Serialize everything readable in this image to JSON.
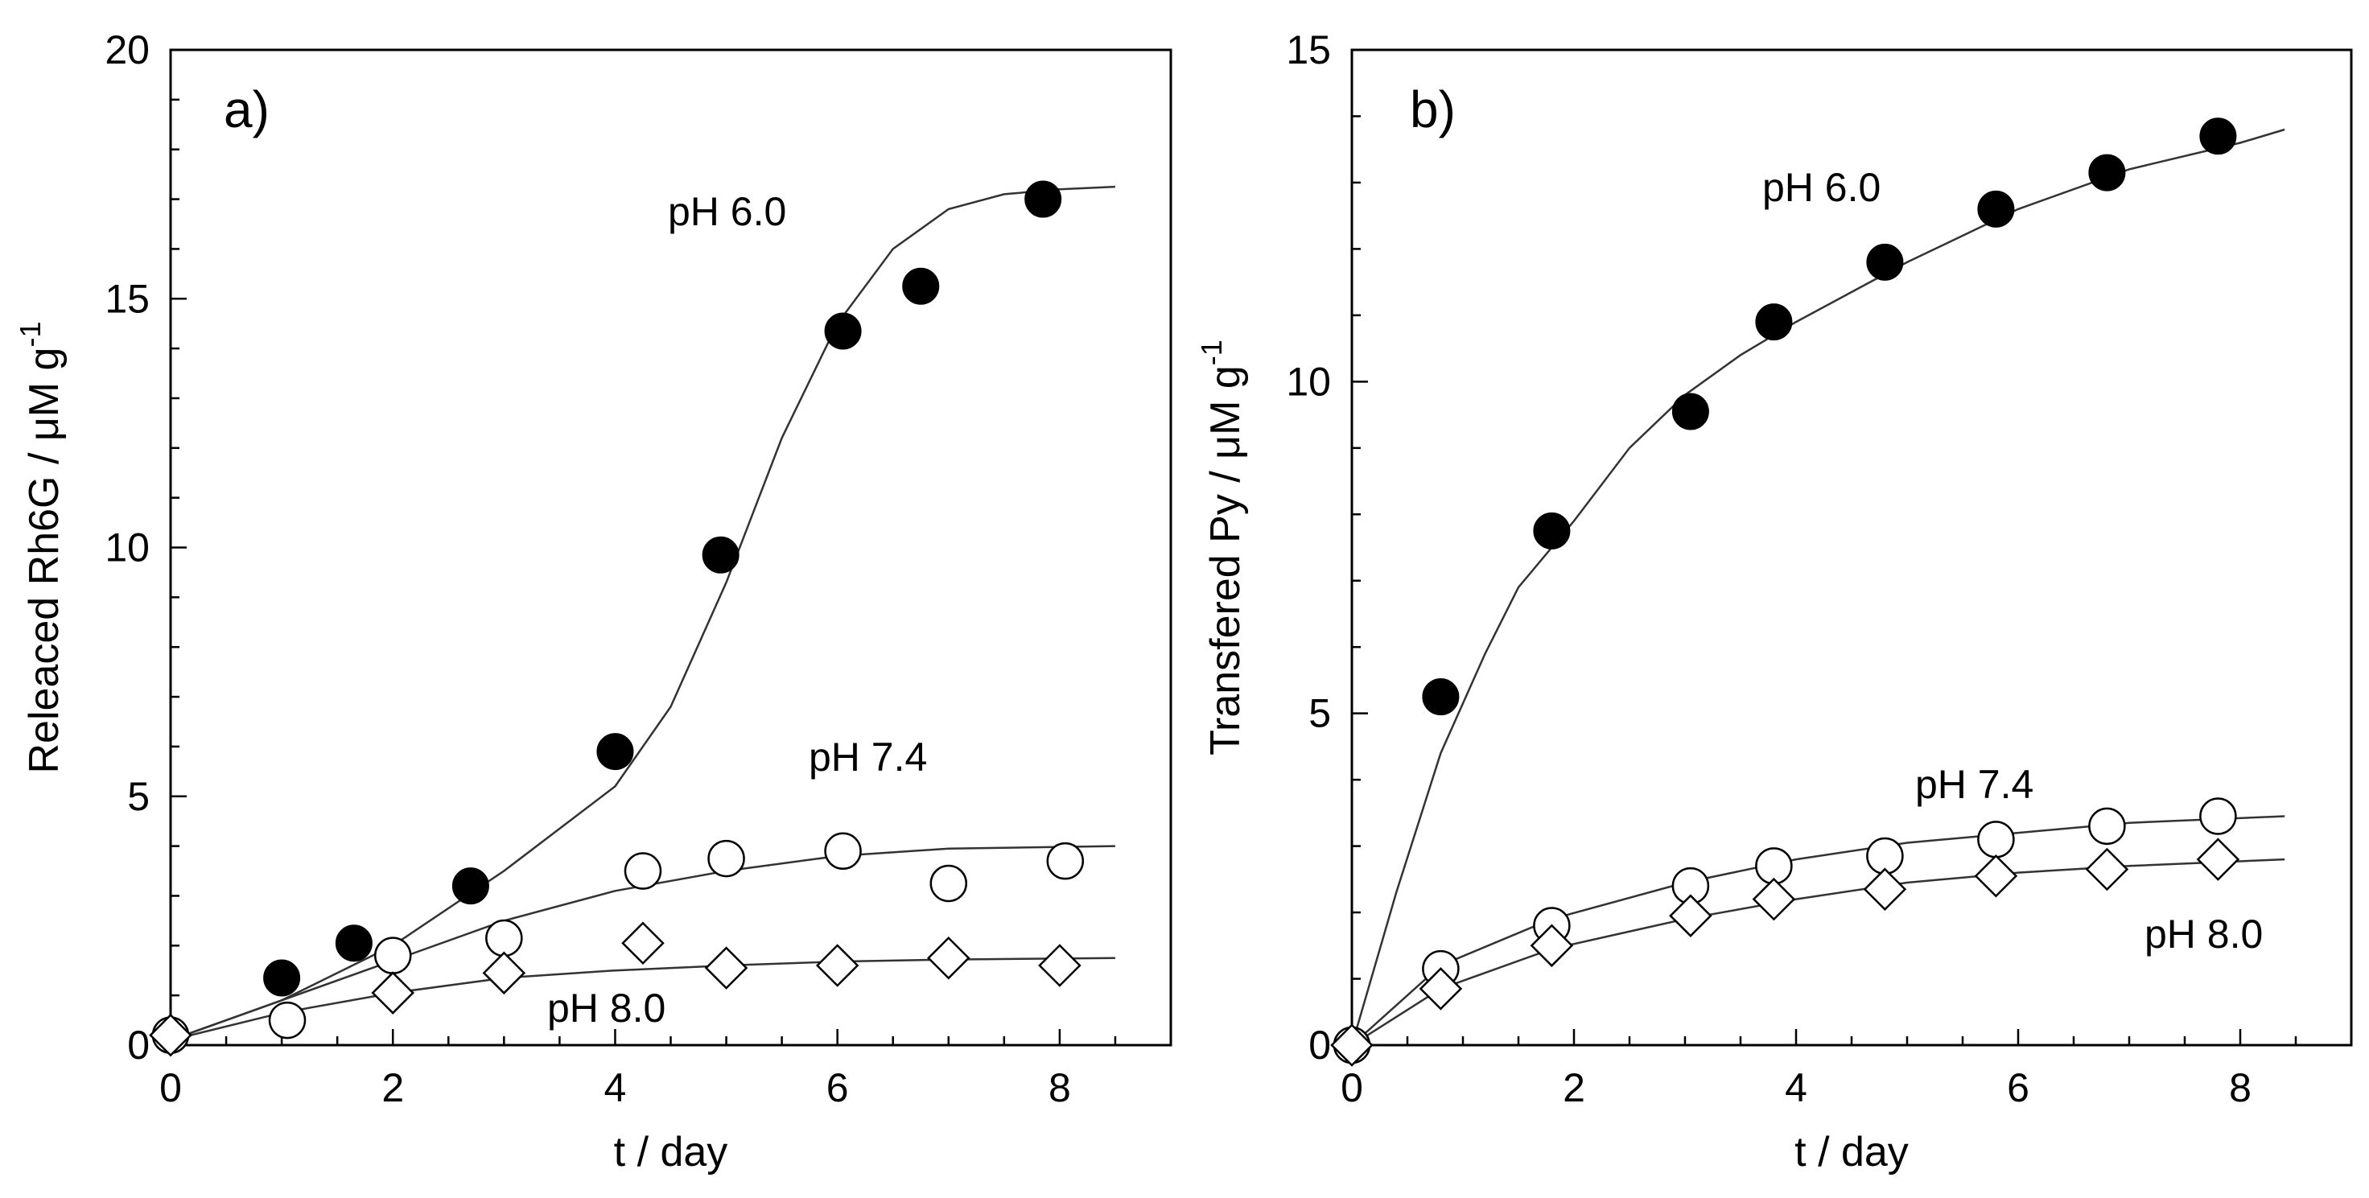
{
  "chart_data": [
    {
      "type": "scatter",
      "panel_label": "a)",
      "xlabel": "t / day",
      "ylabel": "Releaced Rh6G / μM g",
      "ylabel_superscript": "-1",
      "xlim": [
        0,
        9
      ],
      "ylim": [
        0,
        20
      ],
      "xticks": [
        "0",
        "2",
        "4",
        "6",
        "8"
      ],
      "yticks": [
        "0",
        "5",
        "10",
        "15",
        "20"
      ],
      "grid": false,
      "series": [
        {
          "name": "pH 6.0",
          "marker": "filled-circle",
          "points": [
            [
              0,
              0.2
            ],
            [
              1.0,
              1.35
            ],
            [
              1.65,
              2.05
            ],
            [
              2.7,
              3.2
            ],
            [
              4.0,
              5.9
            ],
            [
              4.95,
              9.85
            ],
            [
              6.05,
              14.35
            ],
            [
              6.75,
              15.25
            ],
            [
              7.85,
              17.0
            ]
          ],
          "fit": [
            [
              0,
              0.1
            ],
            [
              1,
              0.9
            ],
            [
              2,
              2.0
            ],
            [
              3,
              3.5
            ],
            [
              4,
              5.2
            ],
            [
              4.5,
              6.8
            ],
            [
              5,
              9.3
            ],
            [
              5.5,
              12.2
            ],
            [
              6,
              14.5
            ],
            [
              6.5,
              16.0
            ],
            [
              7,
              16.8
            ],
            [
              7.5,
              17.1
            ],
            [
              8,
              17.2
            ],
            [
              8.5,
              17.25
            ]
          ]
        },
        {
          "name": "pH 7.4",
          "marker": "open-circle",
          "points": [
            [
              0,
              0.2
            ],
            [
              1.05,
              0.5
            ],
            [
              2.0,
              1.8
            ],
            [
              3.0,
              2.15
            ],
            [
              4.25,
              3.5
            ],
            [
              5.0,
              3.75
            ],
            [
              6.05,
              3.9
            ],
            [
              7.0,
              3.25
            ],
            [
              8.05,
              3.7
            ]
          ],
          "fit": [
            [
              0,
              0.1
            ],
            [
              1,
              0.9
            ],
            [
              2,
              1.7
            ],
            [
              3,
              2.5
            ],
            [
              4,
              3.1
            ],
            [
              5,
              3.5
            ],
            [
              6,
              3.8
            ],
            [
              7,
              3.95
            ],
            [
              8.5,
              4.0
            ]
          ]
        },
        {
          "name": "pH 8.0",
          "marker": "open-diamond",
          "points": [
            [
              0,
              0.2
            ],
            [
              2.0,
              1.05
            ],
            [
              3.0,
              1.45
            ],
            [
              4.25,
              2.05
            ],
            [
              5.0,
              1.55
            ],
            [
              6.0,
              1.6
            ],
            [
              7.0,
              1.75
            ],
            [
              8.0,
              1.6
            ]
          ],
          "fit": [
            [
              0,
              0.1
            ],
            [
              1,
              0.65
            ],
            [
              2,
              1.05
            ],
            [
              3,
              1.35
            ],
            [
              4,
              1.5
            ],
            [
              5,
              1.6
            ],
            [
              6,
              1.68
            ],
            [
              7,
              1.72
            ],
            [
              8.5,
              1.75
            ]
          ]
        }
      ],
      "annotations": [
        "pH 6.0",
        "pH 7.4",
        "pH 8.0"
      ]
    },
    {
      "type": "scatter",
      "panel_label": "b)",
      "xlabel": "t / day",
      "ylabel": "Transfered Py / μM g",
      "ylabel_superscript": "-1",
      "xlim": [
        0,
        9
      ],
      "ylim": [
        0,
        15
      ],
      "xticks": [
        "0",
        "2",
        "4",
        "6",
        "8"
      ],
      "yticks": [
        "0",
        "5",
        "10",
        "15"
      ],
      "grid": false,
      "series": [
        {
          "name": "pH 6.0",
          "marker": "filled-circle",
          "points": [
            [
              0,
              0
            ],
            [
              0.8,
              5.25
            ],
            [
              1.8,
              7.75
            ],
            [
              3.05,
              9.55
            ],
            [
              3.8,
              10.9
            ],
            [
              4.8,
              11.8
            ],
            [
              5.8,
              12.6
            ],
            [
              6.8,
              13.15
            ],
            [
              7.8,
              13.7
            ]
          ],
          "fit": [
            [
              0,
              0
            ],
            [
              0.4,
              2.3
            ],
            [
              0.8,
              4.4
            ],
            [
              1.2,
              5.9
            ],
            [
              1.5,
              6.9
            ],
            [
              2,
              7.9
            ],
            [
              2.5,
              9.0
            ],
            [
              3,
              9.8
            ],
            [
              3.5,
              10.4
            ],
            [
              4,
              10.9
            ],
            [
              5,
              11.8
            ],
            [
              6,
              12.6
            ],
            [
              7,
              13.2
            ],
            [
              8,
              13.6
            ],
            [
              8.4,
              13.8
            ]
          ]
        },
        {
          "name": "pH 7.4",
          "marker": "open-circle",
          "points": [
            [
              0,
              0
            ],
            [
              0.8,
              1.15
            ],
            [
              1.8,
              1.8
            ],
            [
              3.05,
              2.4
            ],
            [
              3.8,
              2.7
            ],
            [
              4.8,
              2.85
            ],
            [
              5.8,
              3.1
            ],
            [
              6.8,
              3.3
            ],
            [
              7.8,
              3.45
            ]
          ],
          "fit": [
            [
              0,
              0
            ],
            [
              0.8,
              1.2
            ],
            [
              1.8,
              1.9
            ],
            [
              3,
              2.45
            ],
            [
              4,
              2.8
            ],
            [
              5,
              3.05
            ],
            [
              6,
              3.2
            ],
            [
              7,
              3.35
            ],
            [
              8.4,
              3.45
            ]
          ]
        },
        {
          "name": "pH 8.0",
          "marker": "open-diamond",
          "points": [
            [
              0,
              0
            ],
            [
              0.8,
              0.85
            ],
            [
              1.8,
              1.5
            ],
            [
              3.05,
              1.95
            ],
            [
              3.8,
              2.2
            ],
            [
              4.8,
              2.35
            ],
            [
              5.8,
              2.55
            ],
            [
              6.8,
              2.65
            ],
            [
              7.8,
              2.8
            ]
          ],
          "fit": [
            [
              0,
              0
            ],
            [
              0.8,
              0.85
            ],
            [
              1.8,
              1.45
            ],
            [
              3,
              1.9
            ],
            [
              4,
              2.2
            ],
            [
              5,
              2.45
            ],
            [
              6,
              2.6
            ],
            [
              7,
              2.7
            ],
            [
              8.4,
              2.8
            ]
          ]
        }
      ],
      "annotations": [
        "pH 6.0",
        "pH 7.4",
        "pH 8.0"
      ]
    }
  ]
}
